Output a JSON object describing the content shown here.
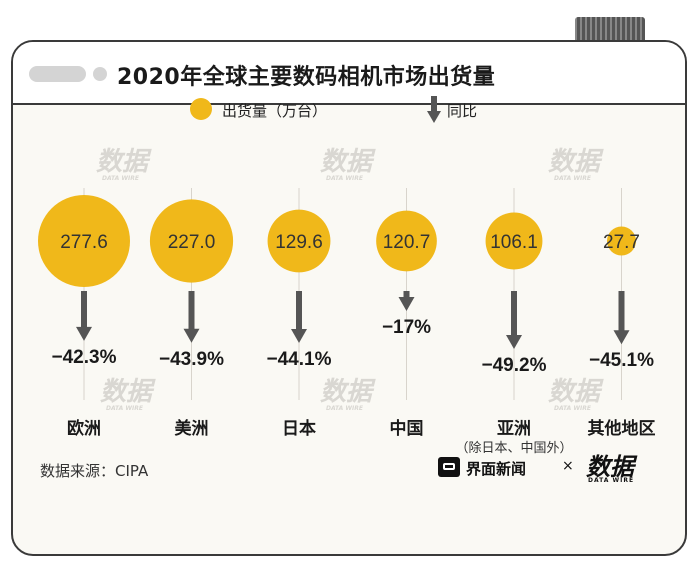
{
  "header": {
    "title": "2020年全球主要数码相机市场出货量"
  },
  "legend": {
    "shipments_label": "出货量（万台）",
    "yoy_label": "同比"
  },
  "watermark": {
    "text": "数据",
    "sub": "DATA WIRE"
  },
  "chart_data": {
    "type": "bubble",
    "title": "2020年全球主要数码相机市场出货量",
    "value_unit": "万台",
    "categories": [
      "欧洲",
      "美洲",
      "日本",
      "中国",
      "亚洲",
      "其他地区"
    ],
    "category_notes": [
      "",
      "",
      "",
      "",
      "（除日本、中国外）",
      ""
    ],
    "series": [
      {
        "name": "出货量（万台）",
        "values": [
          277.6,
          227.0,
          129.6,
          120.7,
          106.1,
          27.7
        ],
        "labels": [
          "277.6",
          "227.0",
          "129.6",
          "120.7",
          "106.1",
          "27.7"
        ]
      },
      {
        "name": "同比",
        "values": [
          -42.3,
          -43.9,
          -44.1,
          -17,
          -49.2,
          -45.1
        ],
        "labels": [
          "−42.3%",
          "−43.9%",
          "−44.1%",
          "−17%",
          "−49.2%",
          "−45.1%"
        ]
      }
    ]
  },
  "colors": {
    "bubble": "#f0b81a",
    "arrow": "#555555",
    "text": "#1a1a1a",
    "guide": "#d8d4cc"
  },
  "footer": {
    "source": "数据来源：CIPA",
    "brand": "界面新闻",
    "separator": "×",
    "logo": "数据",
    "logo_sub": "DATA WIRE"
  }
}
